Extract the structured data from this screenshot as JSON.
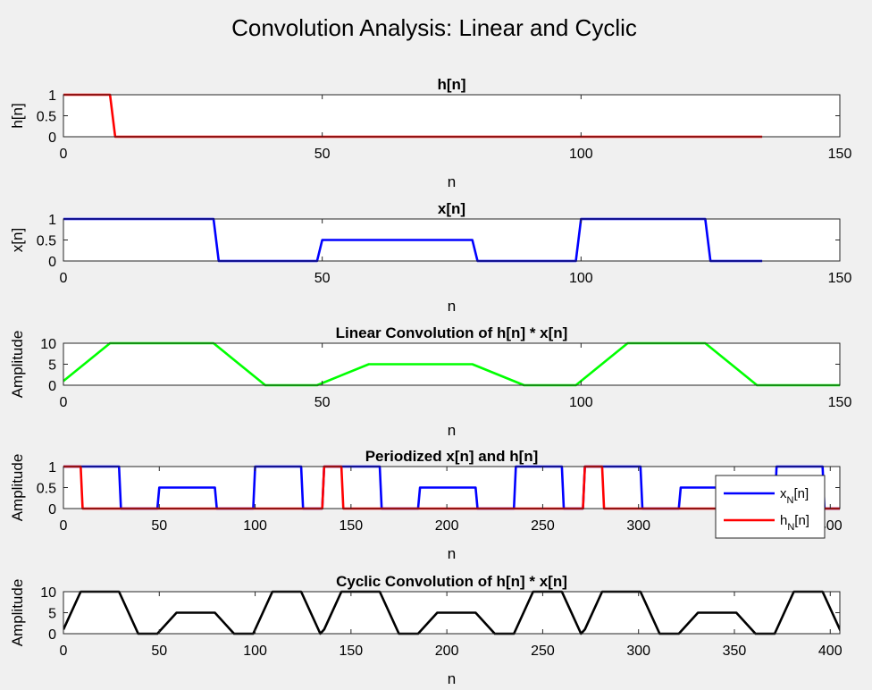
{
  "figure": {
    "title": "Convolution Analysis: Linear and Cyclic"
  },
  "chart_data": [
    {
      "type": "line",
      "title": "h[n]",
      "xlabel": "n",
      "ylabel": "h[n]",
      "xlim": [
        0,
        150
      ],
      "ylim": [
        0,
        1
      ],
      "xticks": [
        "0",
        "50",
        "100",
        "150"
      ],
      "yticks": [
        "0",
        "0.5",
        "1"
      ],
      "grid": false,
      "series": [
        {
          "color": "#ff0000",
          "x": [
            0,
            9,
            10,
            135
          ],
          "y": [
            1,
            1,
            0,
            0
          ]
        }
      ]
    },
    {
      "type": "line",
      "title": "x[n]",
      "xlabel": "n",
      "ylabel": "x[n]",
      "xlim": [
        0,
        150
      ],
      "ylim": [
        0,
        1
      ],
      "xticks": [
        "0",
        "50",
        "100",
        "150"
      ],
      "yticks": [
        "0",
        "0.5",
        "1"
      ],
      "grid": false,
      "series": [
        {
          "color": "#0000ff",
          "x": [
            0,
            29,
            30,
            49,
            50,
            79,
            80,
            99,
            100,
            124,
            125,
            135
          ],
          "y": [
            1,
            1,
            0,
            0,
            0.5,
            0.5,
            0,
            0,
            1,
            1,
            0,
            0
          ]
        }
      ]
    },
    {
      "type": "line",
      "title": "Linear Convolution of h[n] * x[n]",
      "xlabel": "n",
      "ylabel": "Amplitude",
      "xlim": [
        0,
        150
      ],
      "ylim": [
        0,
        10
      ],
      "xticks": [
        "0",
        "50",
        "100",
        "150"
      ],
      "yticks": [
        "0",
        "5",
        "10"
      ],
      "grid": false,
      "series": [
        {
          "color": "#00ff00",
          "x": [
            0,
            9,
            29,
            39,
            49,
            59,
            79,
            89,
            99,
            109,
            124,
            134,
            150
          ],
          "y": [
            1,
            10,
            10,
            0,
            0,
            5,
            5,
            0,
            0,
            10,
            10,
            0,
            0
          ]
        }
      ]
    },
    {
      "type": "line",
      "title": "Periodized x[n] and h[n]",
      "xlabel": "n",
      "ylabel": "Amplitude",
      "xlim": [
        0,
        405
      ],
      "ylim": [
        0,
        1
      ],
      "xticks": [
        "0",
        "50",
        "100",
        "150",
        "200",
        "250",
        "300",
        "350",
        "400"
      ],
      "yticks": [
        "0",
        "0.5",
        "1"
      ],
      "grid": false,
      "legend": "right",
      "series": [
        {
          "name": "x_N[n]",
          "color": "#0000ff",
          "x": [
            0,
            29,
            30,
            49,
            50,
            79,
            80,
            99,
            100,
            124,
            125,
            135,
            136,
            165,
            166,
            185,
            186,
            215,
            216,
            235,
            236,
            260,
            261,
            271,
            272,
            301,
            302,
            321,
            322,
            351,
            352,
            371,
            372,
            396,
            397,
            405
          ],
          "y": [
            1,
            1,
            0,
            0,
            0.5,
            0.5,
            0,
            0,
            1,
            1,
            0,
            0,
            1,
            1,
            0,
            0,
            0.5,
            0.5,
            0,
            0,
            1,
            1,
            0,
            0,
            1,
            1,
            0,
            0,
            0.5,
            0.5,
            0,
            0,
            1,
            1,
            0,
            0
          ]
        },
        {
          "name": "h_N[n]",
          "color": "#ff0000",
          "x": [
            0,
            9,
            10,
            135,
            136,
            145,
            146,
            271,
            272,
            281,
            282,
            405
          ],
          "y": [
            1,
            1,
            0,
            0,
            1,
            1,
            0,
            0,
            1,
            1,
            0,
            0
          ]
        }
      ]
    },
    {
      "type": "line",
      "title": "Cyclic Convolution of h[n] * x[n]",
      "xlabel": "n",
      "ylabel": "Amplitude",
      "xlim": [
        0,
        405
      ],
      "ylim": [
        0,
        10
      ],
      "xticks": [
        "0",
        "50",
        "100",
        "150",
        "200",
        "250",
        "300",
        "350",
        "400"
      ],
      "yticks": [
        "0",
        "5",
        "10"
      ],
      "grid": false,
      "series": [
        {
          "color": "#000000",
          "x": [
            0,
            9,
            29,
            39,
            49,
            59,
            79,
            89,
            99,
            109,
            124,
            134,
            136,
            145,
            165,
            175,
            185,
            195,
            215,
            225,
            235,
            245,
            260,
            270,
            272,
            281,
            301,
            311,
            321,
            331,
            351,
            361,
            371,
            381,
            396,
            406
          ],
          "y": [
            1,
            10,
            10,
            0,
            0,
            5,
            5,
            0,
            0,
            10,
            10,
            0,
            1,
            10,
            10,
            0,
            0,
            5,
            5,
            0,
            0,
            10,
            10,
            0,
            1,
            10,
            10,
            0,
            0,
            5,
            5,
            0,
            0,
            10,
            10,
            0
          ]
        }
      ]
    }
  ]
}
